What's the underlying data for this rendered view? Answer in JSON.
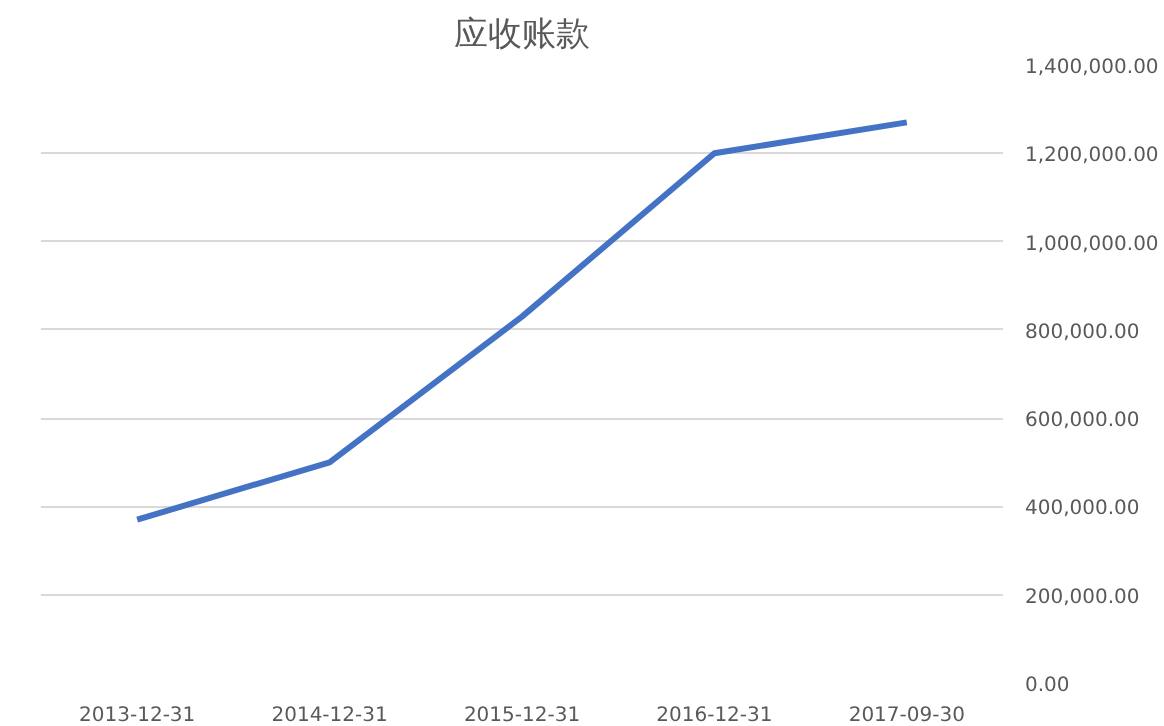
{
  "chart_data": {
    "type": "line",
    "title": "应收账款",
    "categories": [
      "2013-12-31",
      "2014-12-31",
      "2015-12-31",
      "2016-12-31",
      "2017-09-30"
    ],
    "series": [
      {
        "color": "#4472c4",
        "values": [
          370000,
          500000,
          830000,
          1200000,
          1270000
        ]
      }
    ],
    "ylim": [
      0,
      1400000
    ],
    "yticks": [
      {
        "value": 0,
        "label": "0.00"
      },
      {
        "value": 200000,
        "label": "200,000.00"
      },
      {
        "value": 400000,
        "label": "400,000.00"
      },
      {
        "value": 600000,
        "label": "600,000.00"
      },
      {
        "value": 800000,
        "label": "800,000.00"
      },
      {
        "value": 1000000,
        "label": "1,000,000.00"
      },
      {
        "value": 1200000,
        "label": "1,200,000.00"
      },
      {
        "value": 1400000,
        "label": "1,400,000.00"
      }
    ],
    "grid": "y",
    "marker": "none",
    "line_style": "solid"
  }
}
